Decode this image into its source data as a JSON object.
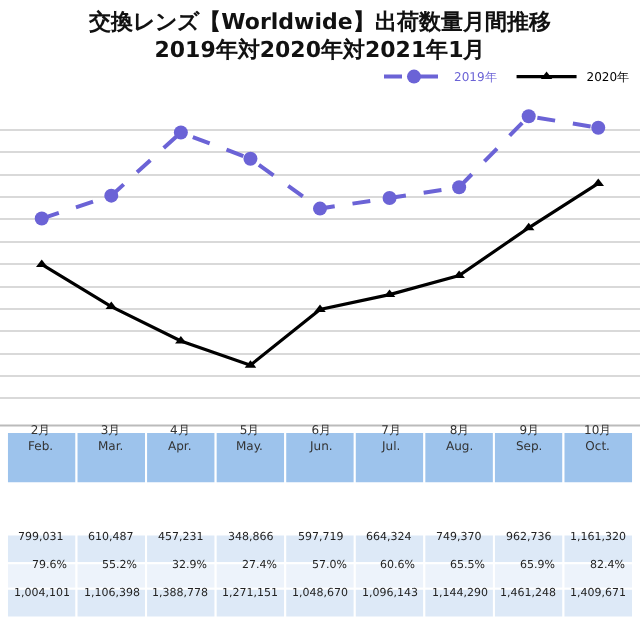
{
  "chart_data": {
    "type": "line",
    "title": "交換レンズ【Worldwide】出荷数量月間推移",
    "subtitle": "2019年対2020年対2021年1月",
    "categories": [
      "2月\nFeb.",
      "3月\nMar.",
      "4月\nApr.",
      "5月\nMay.",
      "6月\nJun.",
      "7月\nJul.",
      "8月\nAug.",
      "9月\nSep.",
      "10月\nOct."
    ],
    "series": [
      {
        "name": "2019年",
        "color": "#6b63d6",
        "line_style": "dashed",
        "marker": "circle",
        "values": [
          1004101,
          1106398,
          1388778,
          1271151,
          1048670,
          1096143,
          1144290,
          1461248,
          1409671
        ],
        "value_labels": [
          "1,004,101",
          "1,106,398",
          "1,388,778",
          "1,271,151",
          "1,048,670",
          "1,096,143",
          "1,144,290",
          "1,461,248",
          "1,409,671"
        ]
      },
      {
        "name": "2020年",
        "color": "#000000",
        "line_style": "solid",
        "marker": "triangle",
        "values": [
          799031,
          610487,
          457231,
          348866,
          597719,
          664324,
          749370,
          962736,
          1161320
        ],
        "value_labels": [
          "799,031",
          "610,487",
          "457,231",
          "348,866",
          "597,719",
          "664,324",
          "749,370",
          "962,736",
          "1,161,320"
        ]
      }
    ],
    "annotations": [
      "79.6%",
      "55.2%",
      "32.9%",
      "27.4%",
      "57.0%",
      "60.6%",
      "65.5%",
      "65.9%",
      "82.4%"
    ],
    "grid": "y",
    "legend": "top right",
    "data_labels": true
  }
}
